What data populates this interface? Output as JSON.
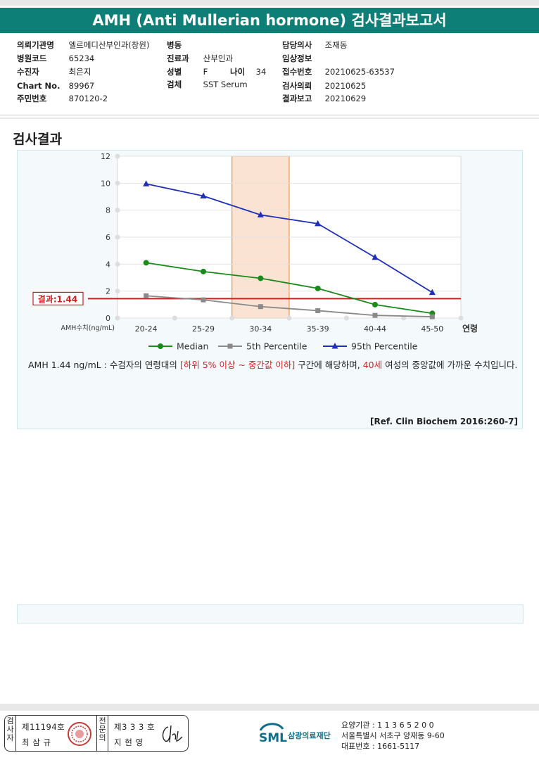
{
  "title": "AMH (Anti Mullerian hormone) 검사결과보고서",
  "info": {
    "hospital_label": "의뢰기관명",
    "hospital": "엘르메디산부인과(창원)",
    "ward_label": "병동",
    "ward": "",
    "doctor_label": "담당의사",
    "doctor": "조재동",
    "code_label": "병원코드",
    "code": "65234",
    "dept_label": "진료과",
    "dept": "산부인과",
    "clinical_label": "임상정보",
    "clinical": "",
    "patient_label": "수진자",
    "patient": "최은지",
    "sex_label": "성별",
    "sex": "F",
    "age_label": "나이",
    "age": "34",
    "receipt_label": "접수번호",
    "receipt": "20210625-63537",
    "chart_label": "Chart No.",
    "chart_no": "89967",
    "specimen_label": "검체",
    "specimen": "SST Serum",
    "request_label": "검사의뢰",
    "request_date": "20210625",
    "id_label": "주민번호",
    "id_no": "870120-2",
    "report_label": "결과보고",
    "report_date": "20210629"
  },
  "section_title": "검사결과",
  "chart_data": {
    "type": "line",
    "categories": [
      "20-24",
      "25-29",
      "30-34",
      "35-39",
      "40-44",
      "45-50"
    ],
    "x_axis_suffix": "연령",
    "y_axis_label": "AMH수치(ng/mL)",
    "ylim": [
      0,
      12
    ],
    "yticks": [
      0,
      2,
      4,
      6,
      8,
      10,
      12
    ],
    "series": [
      {
        "name": "Median",
        "color": "#1a8a1a",
        "marker": "circle",
        "values": [
          4.1,
          3.45,
          2.95,
          2.2,
          1.0,
          0.35
        ]
      },
      {
        "name": "5th Percentile",
        "color": "#8a8a8a",
        "marker": "square",
        "values": [
          1.65,
          1.35,
          0.85,
          0.55,
          0.2,
          0.1
        ]
      },
      {
        "name": "95th Percentile",
        "color": "#1f2fb5",
        "marker": "triangle",
        "values": [
          9.95,
          9.05,
          7.65,
          7.0,
          4.5,
          1.9
        ]
      }
    ],
    "result_line": {
      "label": "결과:1.44",
      "value": 1.44,
      "color": "#cc1f1f"
    },
    "highlight_category": "30-34",
    "grid": true,
    "legend_placement": "bottom"
  },
  "comment": {
    "part1": "AMH  1.44 ng/mL : 수검자의 연령대의 ",
    "range": "[하위 5% 이상 ~ 중간값 이하]",
    "part2": " 구간에 해당하며, ",
    "age": "40세",
    "part3": " 여성의 중앙값에 가까운 수치입니다."
  },
  "reference": "[Ref. Clin Biochem 2016:260-7]",
  "signatures": {
    "examiner_label": "검사자",
    "examiner_license": "제11194호",
    "examiner_name": "최 삼 규",
    "specialist_label": "전문의",
    "specialist_license": "제3 3 3 호",
    "specialist_name": "지 현 영"
  },
  "lab": {
    "logo": "SML",
    "name": "삼광의료재단",
    "institution_code": "요양기관 : 1 1 3 6 5 2 0 0",
    "address": "서울특별시 서초구 양재동 9-60",
    "phone": "대표번호 : 1661-5117",
    "logo_color": "#0e6e8a"
  }
}
